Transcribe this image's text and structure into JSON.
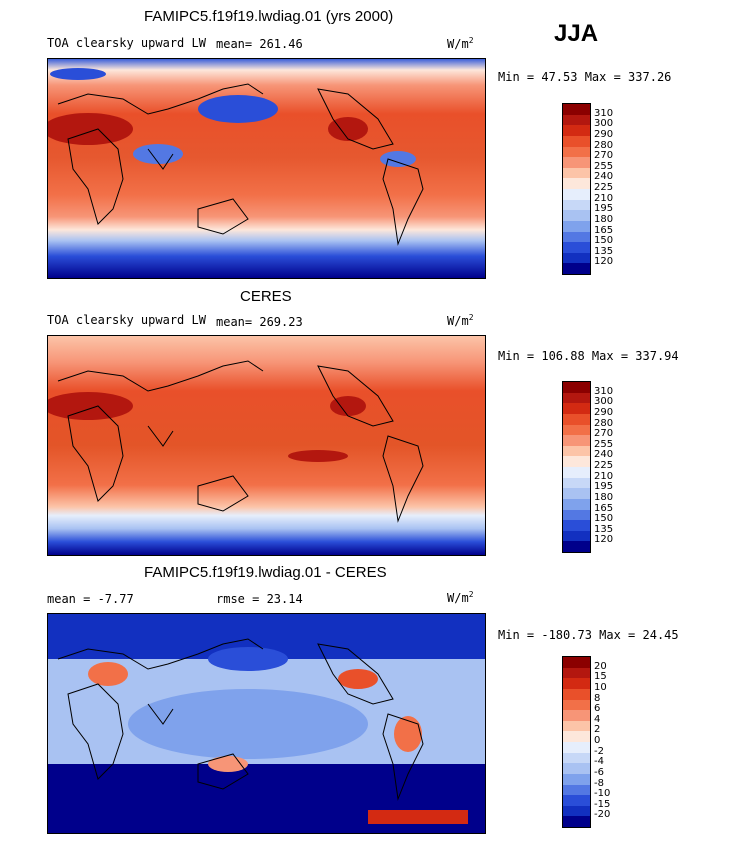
{
  "season": "JJA",
  "units_label": "W/m",
  "units_power": "2",
  "chart_data": [
    {
      "type": "heatmap",
      "title": "FAMIPC5.f19f19.lwdiag.01 (yrs 2000)",
      "field_label": "TOA clearsky upward LW",
      "stat_text": "mean= 261.46",
      "minmax_text": "Min =  47.53 Max = 337.26",
      "units": "W/m2",
      "colorbar_levels": [
        310,
        300,
        290,
        280,
        270,
        255,
        240,
        225,
        210,
        195,
        180,
        165,
        150,
        135,
        120
      ],
      "colorbar_colors": [
        "#8b0000",
        "#b3170f",
        "#d32a12",
        "#e9502a",
        "#f27048",
        "#f79577",
        "#fcc4a8",
        "#fde7db",
        "#e6eefc",
        "#c7d8f7",
        "#a9c2f2",
        "#7fa2ec",
        "#5378e3",
        "#2a4ed8",
        "#1230c0",
        "#00008b"
      ]
    },
    {
      "type": "heatmap",
      "title": "CERES",
      "field_label": "TOA clearsky upward LW",
      "stat_text": "mean= 269.23",
      "minmax_text": "Min = 106.88 Max = 337.94",
      "units": "W/m2",
      "colorbar_levels": [
        310,
        300,
        290,
        280,
        270,
        255,
        240,
        225,
        210,
        195,
        180,
        165,
        150,
        135,
        120
      ],
      "colorbar_colors": [
        "#8b0000",
        "#b3170f",
        "#d32a12",
        "#e9502a",
        "#f27048",
        "#f79577",
        "#fcc4a8",
        "#fde7db",
        "#e6eefc",
        "#c7d8f7",
        "#a9c2f2",
        "#7fa2ec",
        "#5378e3",
        "#2a4ed8",
        "#1230c0",
        "#00008b"
      ]
    },
    {
      "type": "heatmap",
      "title": "FAMIPC5.f19f19.lwdiag.01 - CERES",
      "stat_text": "mean =   -7.77",
      "rmse_text": "rmse =   23.14",
      "minmax_text": "Min = -180.73 Max =  24.45",
      "units": "W/m2",
      "colorbar_levels": [
        20,
        15,
        10,
        8,
        6,
        4,
        2,
        0,
        -2,
        -4,
        -6,
        -8,
        -10,
        -15,
        -20
      ],
      "colorbar_colors": [
        "#8b0000",
        "#b3170f",
        "#d32a12",
        "#e9502a",
        "#f27048",
        "#f79577",
        "#fcc4a8",
        "#fde7db",
        "#e6eefc",
        "#c7d8f7",
        "#a9c2f2",
        "#7fa2ec",
        "#5378e3",
        "#2a4ed8",
        "#1230c0",
        "#00008b"
      ]
    }
  ]
}
